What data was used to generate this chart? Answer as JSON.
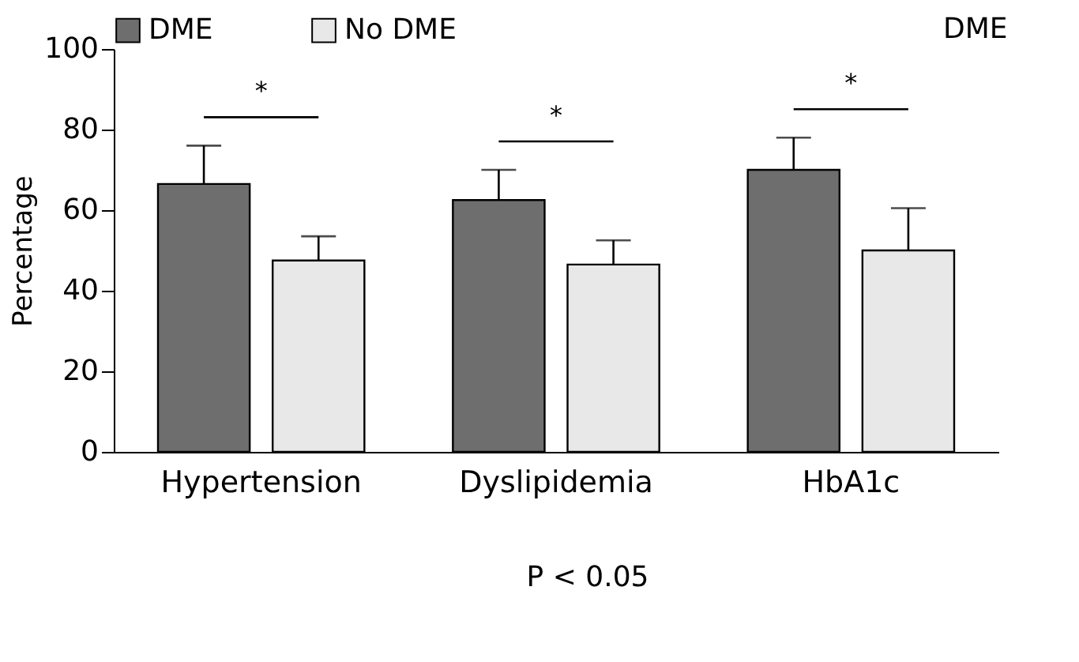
{
  "chart_data": {
    "type": "bar",
    "ylabel": "Percentage",
    "categories": [
      "Hypertension",
      "Dyslipidemia",
      "HbA1c"
    ],
    "series": [
      {
        "name": "DME",
        "color": "#6e6e6e",
        "values": [
          66.5,
          62.5,
          70
        ],
        "errors": [
          [
            66.5,
            76
          ],
          [
            62.5,
            70
          ],
          [
            70,
            78
          ]
        ]
      },
      {
        "name": "No DME",
        "color": "#e8e8e8",
        "values": [
          47.5,
          46.5,
          50
        ],
        "errors": [
          [
            47.5,
            53.5
          ],
          [
            46.5,
            52.5
          ],
          [
            50,
            60.5
          ]
        ]
      }
    ],
    "ylim": [
      0,
      100
    ],
    "yticks": [
      0,
      20,
      40,
      60,
      80,
      100
    ],
    "grid": false,
    "legend": "top",
    "annotations": [
      "*",
      "*",
      "*",
      "DME",
      "P < 0.05"
    ]
  }
}
